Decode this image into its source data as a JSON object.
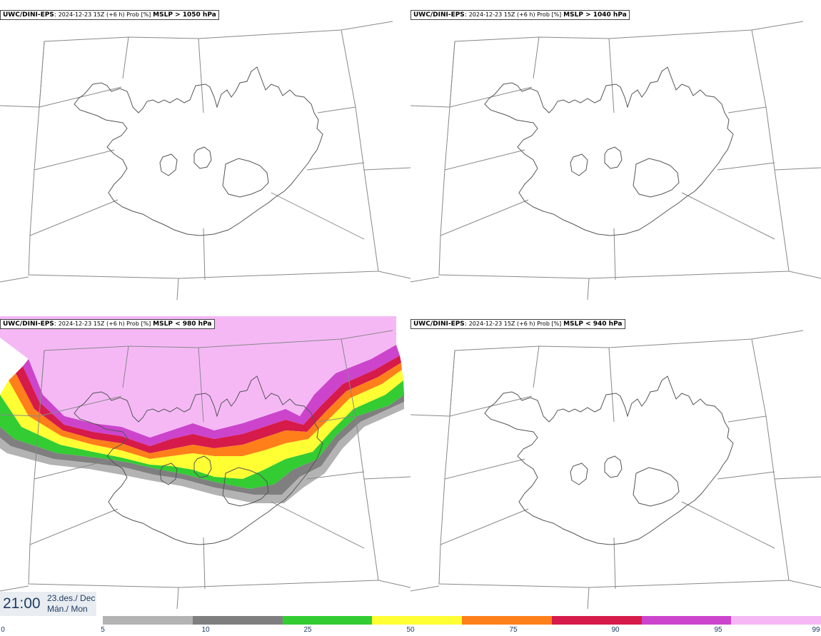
{
  "panels": [
    {
      "model": "UWC/DINI-EPS",
      "meta": "2024-12-23 15Z (+6 h) Prob [%]",
      "threshold": "MSLP > 1050 hPa"
    },
    {
      "model": "UWC/DINI-EPS",
      "meta": "2024-12-23 15Z (+6 h) Prob [%]",
      "threshold": "MSLP > 1040 hPa"
    },
    {
      "model": "UWC/DINI-EPS",
      "meta": "2024-12-23 15Z (+6 h) Prob [%]",
      "threshold": "MSLP < 980 hPa"
    },
    {
      "model": "UWC/DINI-EPS",
      "meta": "2024-12-23 15Z (+6 h) Prob [%]",
      "threshold": "MSLP < 940 hPa"
    }
  ],
  "time": {
    "clock": "21:00",
    "date_line1": "23.des./ Dec",
    "date_line2": "Mán./ Mon"
  },
  "colorbar": {
    "ticks": [
      "0",
      "5",
      "10",
      "25",
      "50",
      "75",
      "90",
      "95",
      "99"
    ],
    "colors": [
      "#b3b3b3",
      "#7f7f7f",
      "#33cc33",
      "#ffff33",
      "#ff7f1a",
      "#d61a4a",
      "#cc44cc",
      "#f5b8f5"
    ]
  }
}
